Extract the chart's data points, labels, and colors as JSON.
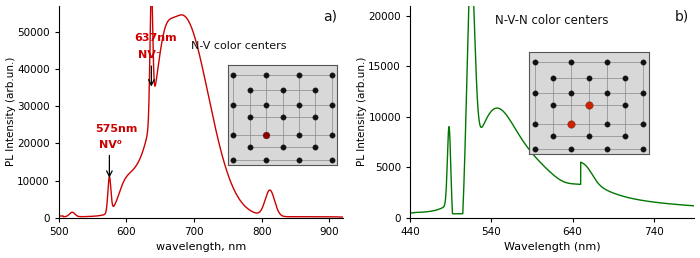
{
  "panel_a": {
    "color": "#cc0000",
    "label": "a)",
    "xlabel": "wavelength, nm",
    "ylabel": "PL Intensity (arb.un.)",
    "xlim": [
      500,
      920
    ],
    "ylim": [
      0,
      57000
    ],
    "yticks": [
      0,
      10000,
      20000,
      30000,
      40000,
      50000
    ],
    "xticks": [
      500,
      600,
      700,
      800,
      900
    ],
    "label_text": "N-V color centers"
  },
  "panel_b": {
    "color": "#007700",
    "label": "b)",
    "xlabel": "Wavelength (nm)",
    "ylabel": "PL Intensity (arb.un.)",
    "xlim": [
      440,
      790
    ],
    "ylim": [
      0,
      21000
    ],
    "yticks": [
      0,
      5000,
      10000,
      15000,
      20000
    ],
    "xticks": [
      440,
      540,
      640,
      740
    ],
    "label_text": "N-V-N color centers"
  }
}
